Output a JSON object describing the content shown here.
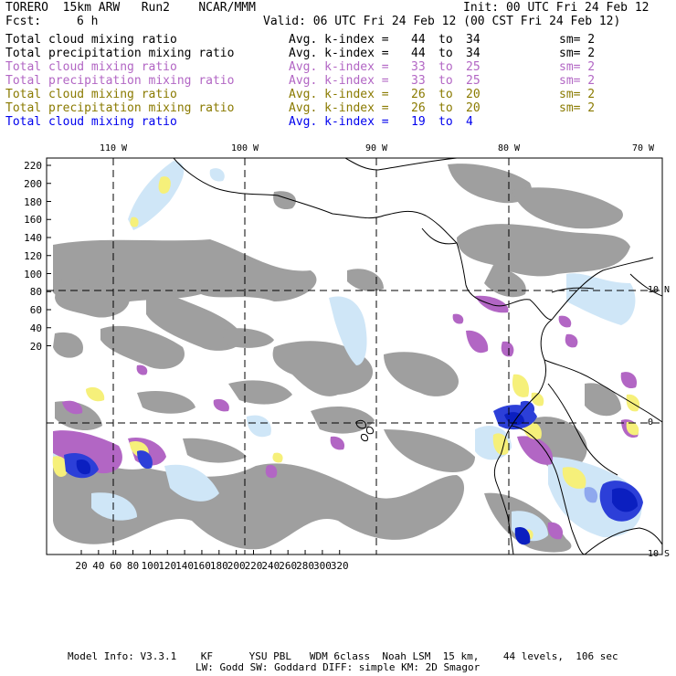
{
  "header": {
    "title_left": "TORERO  15km ARW   Run2    NCAR/MMM",
    "init": "Init: 00 UTC Fri 24 Feb 12",
    "fcst_label": "Fcst:",
    "fcst_value": "6 h",
    "valid": "Valid: 06 UTC Fri 24 Feb 12 (00 CST Fri 24 Feb 12)"
  },
  "legend": [
    {
      "field": "Total cloud mixing ratio",
      "kindex": "Avg. k-index =",
      "from": "44",
      "to": "to",
      "upto": "34",
      "sm": "sm= 2",
      "color": "#000000"
    },
    {
      "field": "Total precipitation mixing ratio",
      "kindex": "Avg. k-index =",
      "from": "44",
      "to": "to",
      "upto": "34",
      "sm": "sm= 2",
      "color": "#000000"
    },
    {
      "field": "Total cloud mixing ratio",
      "kindex": "Avg. k-index =",
      "from": "33",
      "to": "to",
      "upto": "25",
      "sm": "sm= 2",
      "color": "#b266c4"
    },
    {
      "field": "Total precipitation mixing ratio",
      "kindex": "Avg. k-index =",
      "from": "33",
      "to": "to",
      "upto": "25",
      "sm": "sm= 2",
      "color": "#b266c4"
    },
    {
      "field": "Total cloud mixing ratio",
      "kindex": "Avg. k-index =",
      "from": "26",
      "to": "to",
      "upto": "20",
      "sm": "sm= 2",
      "color": "#8a7a00"
    },
    {
      "field": "Total precipitation mixing ratio",
      "kindex": "Avg. k-index =",
      "from": "26",
      "to": "to",
      "upto": "20",
      "sm": "sm= 2",
      "color": "#8a7a00"
    },
    {
      "field": "Total cloud mixing ratio",
      "kindex": "Avg. k-index =",
      "from": "19",
      "to": "to",
      "upto": "4",
      "sm": "",
      "color": "#0000ee"
    }
  ],
  "map": {
    "lon_labels": [
      "110 W",
      "100 W",
      "90 W",
      "80 W",
      "70 W"
    ],
    "lat_labels": [
      "10 N",
      "0",
      "10 S"
    ],
    "y_ticks": [
      "220",
      "200",
      "180",
      "160",
      "140",
      "120",
      "100",
      "80",
      "60",
      "40",
      "20"
    ],
    "x_ticks": [
      "20",
      "40",
      "60",
      "80",
      "100",
      "120",
      "140",
      "160",
      "180",
      "200",
      "220",
      "240",
      "260",
      "280",
      "300",
      "320"
    ]
  },
  "footer": {
    "line1": "Model Info: V3.3.1    KF      YSU PBL   WDM 6class  Noah LSM  15 km,    44 levels,  106 sec",
    "line2": "LW: Godd SW: Goddard DIFF: simple KM: 2D Smagor"
  },
  "colors": {
    "cloud_gray": "#9a9a9a",
    "precip_light_blue": "#cfe6f7",
    "purple": "#b266c4",
    "yellow": "#f6f07a",
    "blue": "#2c3fd8",
    "dark_blue": "#0b1fc0"
  }
}
